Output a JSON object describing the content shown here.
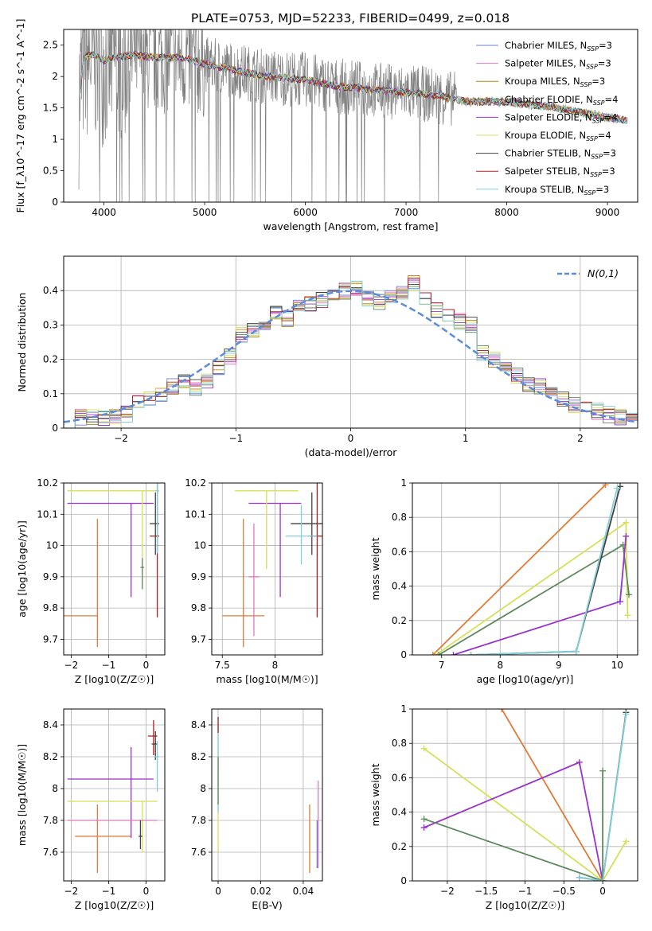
{
  "figure": {
    "title": "PLATE=0753, MJD=52233, FIBERID=0499, z=0.018"
  },
  "colors": {
    "observed": "#808080",
    "dashed_normal": "#5b8bd9",
    "grid": "#b0b0b0"
  },
  "legend_models": [
    {
      "label": "Chabrier MILES, N",
      "sub": "SSP",
      "suffix": "=3",
      "color": "#6b7fd7"
    },
    {
      "label": "Salpeter MILES, N",
      "sub": "SSP",
      "suffix": "=3",
      "color": "#e377c2"
    },
    {
      "label": "Kroupa MILES, N",
      "sub": "SSP",
      "suffix": "=3",
      "color": "#b8860b"
    },
    {
      "label": "Chabrier ELODIE, N",
      "sub": "SSP",
      "suffix": "=4",
      "color": "#5c8a5c"
    },
    {
      "label": "Salpeter ELODIE, N",
      "sub": "SSP",
      "suffix": "=4",
      "color": "#9932cc"
    },
    {
      "label": "Kroupa ELODIE, N",
      "sub": "SSP",
      "suffix": "=4",
      "color": "#d4e157"
    },
    {
      "label": "Chabrier STELIB, N",
      "sub": "SSP",
      "suffix": "=3",
      "color": "#404040"
    },
    {
      "label": "Salpeter STELIB, N",
      "sub": "SSP",
      "suffix": "=3",
      "color": "#b22222"
    },
    {
      "label": "Kroupa STELIB, N",
      "sub": "SSP",
      "suffix": "=3",
      "color": "#7fd0d8"
    }
  ],
  "chart_data": [
    {
      "id": "spectrum",
      "type": "line",
      "xlabel": "wavelength [Angstrom, rest frame]",
      "ylabel": "Flux [f_λ10^-17 erg cm^-2 s^-1 A^-1]",
      "xlim": [
        3600,
        9300
      ],
      "ylim": [
        0,
        2.75
      ],
      "xticks": [
        4000,
        5000,
        6000,
        7000,
        8000,
        9000
      ],
      "yticks": [
        0.0,
        0.5,
        1.0,
        1.5,
        2.0,
        2.5
      ],
      "grid": false,
      "legend_position": "top-right",
      "continuum": {
        "x": [
          3750,
          3800,
          3900,
          4000,
          4100,
          4300,
          4500,
          4800,
          5000,
          5300,
          5600,
          6000,
          6300,
          6600,
          7000,
          7300,
          7600,
          8000,
          8500,
          9000,
          9200
        ],
        "y": [
          1.6,
          2.3,
          2.35,
          2.25,
          2.3,
          2.35,
          2.3,
          2.3,
          2.2,
          2.1,
          2.0,
          1.95,
          1.85,
          1.8,
          1.75,
          1.7,
          1.6,
          1.6,
          1.5,
          1.35,
          1.3
        ]
      }
    },
    {
      "id": "residuals",
      "type": "bar",
      "xlabel": "(data-model)/error",
      "ylabel": "Normed distribution",
      "xlim": [
        -2.5,
        2.5
      ],
      "ylim": [
        0,
        0.5
      ],
      "xticks": [
        -2,
        -1,
        0,
        1,
        2
      ],
      "yticks": [
        0.0,
        0.1,
        0.2,
        0.3,
        0.4
      ],
      "grid": true,
      "legend": "N(0,1)",
      "legend_position": "top-right",
      "bin_width": 0.1,
      "bin_start": -2.5,
      "values": [
        0.02,
        0.03,
        0.035,
        0.03,
        0.03,
        0.04,
        0.08,
        0.09,
        0.1,
        0.12,
        0.13,
        0.12,
        0.14,
        0.18,
        0.21,
        0.27,
        0.28,
        0.3,
        0.33,
        0.32,
        0.35,
        0.36,
        0.37,
        0.38,
        0.4,
        0.41,
        0.38,
        0.37,
        0.38,
        0.4,
        0.42,
        0.37,
        0.34,
        0.33,
        0.31,
        0.3,
        0.22,
        0.2,
        0.18,
        0.15,
        0.13,
        0.12,
        0.1,
        0.08,
        0.07,
        0.06,
        0.05,
        0.04,
        0.03,
        0.02
      ]
    },
    {
      "id": "age_vs_z",
      "type": "scatter",
      "xlabel": "Z [log10(Z/Z☉)]",
      "ylabel": "age  [log10(age/yr)]",
      "xlim": [
        -2.2,
        0.5
      ],
      "ylim": [
        9.65,
        10.2
      ],
      "xticks": [
        -2,
        -1,
        0
      ],
      "yticks": [
        9.7,
        9.8,
        9.9,
        10.0,
        10.1,
        10.2
      ],
      "grid": true,
      "points": [
        {
          "x": -1.3,
          "y": 9.775,
          "xerr": [
            2.0,
            0.0
          ],
          "yerr": [
            0.1,
            0.31
          ],
          "color": "#e07b39"
        },
        {
          "x": -0.4,
          "y": 10.135,
          "xerr": [
            1.7,
            0.6
          ],
          "yerr": [
            0.3,
            0.0
          ],
          "color": "#9932cc"
        },
        {
          "x": -0.1,
          "y": 10.175,
          "xerr": [
            2.0,
            0.4
          ],
          "yerr": [
            0.3,
            0.0
          ],
          "color": "#d4e157"
        },
        {
          "x": 0.25,
          "y": 10.07,
          "xerr": [
            0.15,
            0.1
          ],
          "yerr": [
            0.1,
            0.1
          ],
          "color": "#404040"
        },
        {
          "x": 0.3,
          "y": 10.03,
          "xerr": [
            0.2,
            0.05
          ],
          "yerr": [
            0.26,
            0.17
          ],
          "color": "#b22222"
        },
        {
          "x": 0.3,
          "y": 10.175,
          "xerr": [
            0.05,
            0.05
          ],
          "yerr": [
            0.2,
            0.03
          ],
          "color": "#7fd0d8"
        },
        {
          "x": -0.1,
          "y": 9.93,
          "xerr": [
            0.05,
            0.05
          ],
          "yerr": [
            0.07,
            0.03
          ],
          "color": "#5c8a5c"
        }
      ]
    },
    {
      "id": "age_vs_mass",
      "type": "scatter",
      "xlabel": "mass [log10(M/M☉)]",
      "ylabel": "",
      "xlim": [
        7.4,
        8.45
      ],
      "ylim": [
        9.65,
        10.2
      ],
      "xticks": [
        7.5,
        8.0
      ],
      "yticks": [
        9.7,
        9.8,
        9.9,
        10.0,
        10.1,
        10.2
      ],
      "grid": true,
      "points": [
        {
          "x": 7.7,
          "y": 9.775,
          "xerr": [
            0.2,
            0.2
          ],
          "yerr": [
            0.1,
            0.31
          ],
          "color": "#e07b39"
        },
        {
          "x": 8.05,
          "y": 10.135,
          "xerr": [
            0.3,
            0.2
          ],
          "yerr": [
            0.3,
            0.0
          ],
          "color": "#9932cc"
        },
        {
          "x": 7.92,
          "y": 10.175,
          "xerr": [
            0.3,
            0.3
          ],
          "yerr": [
            0.25,
            0.0
          ],
          "color": "#d4e157"
        },
        {
          "x": 8.35,
          "y": 10.07,
          "xerr": [
            0.2,
            0.15
          ],
          "yerr": [
            0.1,
            0.1
          ],
          "color": "#404040"
        },
        {
          "x": 8.4,
          "y": 10.03,
          "xerr": [
            0.07,
            0.05
          ],
          "yerr": [
            0.26,
            0.17
          ],
          "color": "#b22222"
        },
        {
          "x": 8.25,
          "y": 10.03,
          "xerr": [
            0.15,
            0.15
          ],
          "yerr": [
            0.09,
            0.1
          ],
          "color": "#7fd0d8"
        },
        {
          "x": 7.8,
          "y": 9.9,
          "xerr": [
            0.05,
            0.05
          ],
          "yerr": [
            0.19,
            0.17
          ],
          "color": "#e377c2"
        }
      ]
    },
    {
      "id": "weight_vs_age",
      "type": "line",
      "xlabel": "age  [log10(age/yr)]",
      "ylabel": "mass weight",
      "xlim": [
        6.5,
        10.35
      ],
      "ylim": [
        0,
        1
      ],
      "xticks": [
        7,
        8,
        9,
        10
      ],
      "yticks": [
        0.0,
        0.2,
        0.4,
        0.6,
        0.8,
        1.0
      ],
      "grid": true,
      "series": [
        {
          "color": "#e07b39",
          "x": [
            6.85,
            9.8
          ],
          "y": [
            0.0,
            0.99
          ]
        },
        {
          "color": "#d4e157",
          "x": [
            6.9,
            10.15,
            10.18
          ],
          "y": [
            0.0,
            0.77,
            0.23
          ]
        },
        {
          "color": "#5c8a5c",
          "x": [
            6.95,
            10.1,
            10.2
          ],
          "y": [
            0.0,
            0.64,
            0.35
          ]
        },
        {
          "color": "#9932cc",
          "x": [
            7.2,
            10.05,
            10.15
          ],
          "y": [
            0.0,
            0.31,
            0.69
          ]
        },
        {
          "color": "#404040",
          "x": [
            7.5,
            9.3,
            10.05
          ],
          "y": [
            0.0,
            0.02,
            0.98
          ]
        },
        {
          "color": "#7fd0d8",
          "x": [
            7.5,
            9.3,
            10.0
          ],
          "y": [
            0.0,
            0.02,
            0.97
          ]
        }
      ]
    },
    {
      "id": "mass_vs_z",
      "type": "scatter",
      "xlabel": "Z [log10(Z/Z☉)]",
      "ylabel": "mass [log10(M/M☉)]",
      "xlim": [
        -2.2,
        0.5
      ],
      "ylim": [
        7.42,
        8.5
      ],
      "xticks": [
        -2,
        -1,
        0
      ],
      "yticks": [
        7.6,
        7.8,
        8.0,
        8.2,
        8.4
      ],
      "grid": true,
      "points": [
        {
          "x": -1.3,
          "y": 7.7,
          "xerr": [
            0.6,
            0.9
          ],
          "yerr": [
            0.23,
            0.2
          ],
          "color": "#e07b39"
        },
        {
          "x": -0.4,
          "y": 8.06,
          "xerr": [
            1.7,
            0.6
          ],
          "yerr": [
            0.37,
            0.2
          ],
          "color": "#9932cc"
        },
        {
          "x": -0.1,
          "y": 7.92,
          "xerr": [
            2.0,
            0.4
          ],
          "yerr": [
            0.32,
            0.0
          ],
          "color": "#d4e157"
        },
        {
          "x": -0.4,
          "y": 7.8,
          "xerr": [
            1.7,
            0.7
          ],
          "yerr": [
            0.0,
            0.0
          ],
          "color": "#e377c2"
        },
        {
          "x": 0.2,
          "y": 8.33,
          "xerr": [
            0.15,
            0.1
          ],
          "yerr": [
            0.12,
            0.1
          ],
          "color": "#b22222"
        },
        {
          "x": 0.25,
          "y": 8.28,
          "xerr": [
            0.1,
            0.05
          ],
          "yerr": [
            0.1,
            0.08
          ],
          "color": "#404040"
        },
        {
          "x": 0.3,
          "y": 8.2,
          "xerr": [
            0.1,
            0.05
          ],
          "yerr": [
            0.22,
            0.1
          ],
          "color": "#7fd0d8"
        },
        {
          "x": -0.15,
          "y": 7.7,
          "xerr": [
            0.05,
            0.05
          ],
          "yerr": [
            0.08,
            0.1
          ],
          "color": "#404040"
        }
      ]
    },
    {
      "id": "mass_vs_ebv",
      "type": "scatter",
      "xlabel": "E(B-V)",
      "ylabel": "",
      "xlim": [
        -0.003,
        0.049
      ],
      "ylim": [
        7.42,
        8.5
      ],
      "xticks": [
        0.0,
        0.02,
        0.04
      ],
      "yticks": [
        7.6,
        7.8,
        8.0,
        8.2,
        8.4
      ],
      "grid": true,
      "points": [
        {
          "x": 0.0,
          "y": 8.2,
          "xerr": [
            0,
            0
          ],
          "yerr": [
            0.6,
            0.2
          ],
          "color": "#d4e157"
        },
        {
          "x": 0.0,
          "y": 8.3,
          "xerr": [
            0,
            0
          ],
          "yerr": [
            0.45,
            0.15
          ],
          "color": "#7fd0d8"
        },
        {
          "x": 0.0,
          "y": 8.4,
          "xerr": [
            0,
            0
          ],
          "yerr": [
            0.05,
            0.05
          ],
          "color": "#b22222"
        },
        {
          "x": 0.0,
          "y": 8.1,
          "xerr": [
            0,
            0
          ],
          "yerr": [
            0.2,
            0.1
          ],
          "color": "#5c8a5c"
        },
        {
          "x": 0.043,
          "y": 7.7,
          "xerr": [
            0,
            0
          ],
          "yerr": [
            0.23,
            0.2
          ],
          "color": "#e07b39"
        },
        {
          "x": 0.047,
          "y": 7.8,
          "xerr": [
            0,
            0
          ],
          "yerr": [
            0.3,
            0.25
          ],
          "color": "#e377c2"
        },
        {
          "x": 0.0465,
          "y": 7.7,
          "xerr": [
            0,
            0
          ],
          "yerr": [
            0.2,
            0.1
          ],
          "color": "#6b7fd7"
        }
      ]
    },
    {
      "id": "weight_vs_z",
      "type": "line",
      "xlabel": "Z [log10(Z/Z☉)]",
      "ylabel": "mass weight",
      "xlim": [
        -2.45,
        0.45
      ],
      "ylim": [
        0,
        1
      ],
      "xticks": [
        -2.0,
        -1.5,
        -1.0,
        -0.5,
        0.0
      ],
      "yticks": [
        0.0,
        0.2,
        0.4,
        0.6,
        0.8,
        1.0
      ],
      "grid": true,
      "series": [
        {
          "color": "#e07b39",
          "x": [
            -1.3,
            0.0
          ],
          "y": [
            1.0,
            0.0
          ]
        },
        {
          "color": "#d4e157",
          "x": [
            -2.3,
            0.0,
            0.3
          ],
          "y": [
            0.77,
            0.0,
            0.23
          ]
        },
        {
          "color": "#9932cc",
          "x": [
            -2.3,
            -0.3,
            0.0
          ],
          "y": [
            0.31,
            0.69,
            0.0
          ]
        },
        {
          "color": "#5c8a5c",
          "x": [
            -2.3,
            0.0,
            0.0
          ],
          "y": [
            0.36,
            0.0,
            0.64
          ]
        },
        {
          "color": "#404040",
          "x": [
            -0.3,
            0.0,
            0.3
          ],
          "y": [
            0.02,
            0.0,
            0.98
          ]
        },
        {
          "color": "#7fd0d8",
          "x": [
            -0.3,
            0.0,
            0.3
          ],
          "y": [
            0.02,
            0.0,
            0.97
          ]
        }
      ]
    }
  ]
}
